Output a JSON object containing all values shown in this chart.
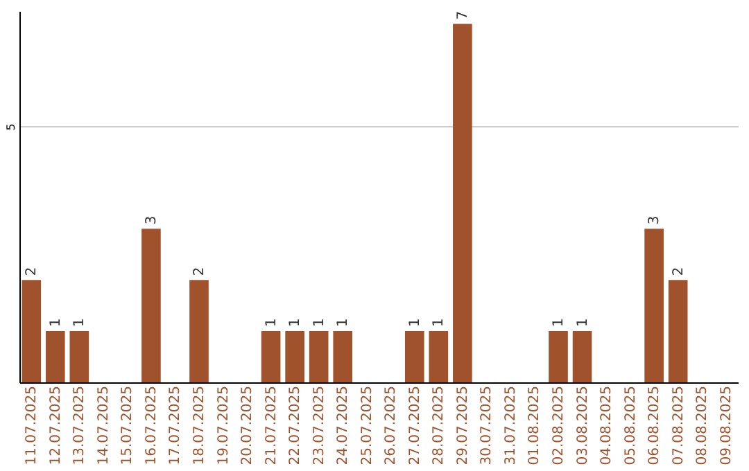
{
  "chart_data": {
    "type": "bar",
    "categories": [
      "11.07.2025",
      "12.07.2025",
      "13.07.2025",
      "14.07.2025",
      "15.07.2025",
      "16.07.2025",
      "17.07.2025",
      "18.07.2025",
      "19.07.2025",
      "20.07.2025",
      "21.07.2025",
      "22.07.2025",
      "23.07.2025",
      "24.07.2025",
      "25.07.2025",
      "26.07.2025",
      "27.07.2025",
      "28.07.2025",
      "29.07.2025",
      "30.07.2025",
      "31.07.2025",
      "01.08.2025",
      "02.08.2025",
      "03.08.2025",
      "04.08.2025",
      "05.08.2025",
      "06.08.2025",
      "07.08.2025",
      "08.08.2025",
      "09.08.2025"
    ],
    "values": [
      2,
      1,
      1,
      0,
      0,
      3,
      0,
      2,
      0,
      0,
      1,
      1,
      1,
      1,
      0,
      0,
      1,
      1,
      7,
      0,
      0,
      0,
      1,
      1,
      0,
      0,
      3,
      2,
      0,
      0
    ],
    "value_labels": [
      "2",
      "1",
      "1",
      null,
      null,
      "3",
      null,
      "2",
      null,
      null,
      "1",
      "1",
      "1",
      "1",
      null,
      null,
      "1",
      "1",
      "7",
      null,
      null,
      null,
      "1",
      "1",
      null,
      null,
      "3",
      "2",
      null,
      null
    ],
    "color": "#a0522d",
    "ylim": [
      0,
      7.25
    ],
    "yticks": [
      5
    ],
    "grid": "y"
  }
}
